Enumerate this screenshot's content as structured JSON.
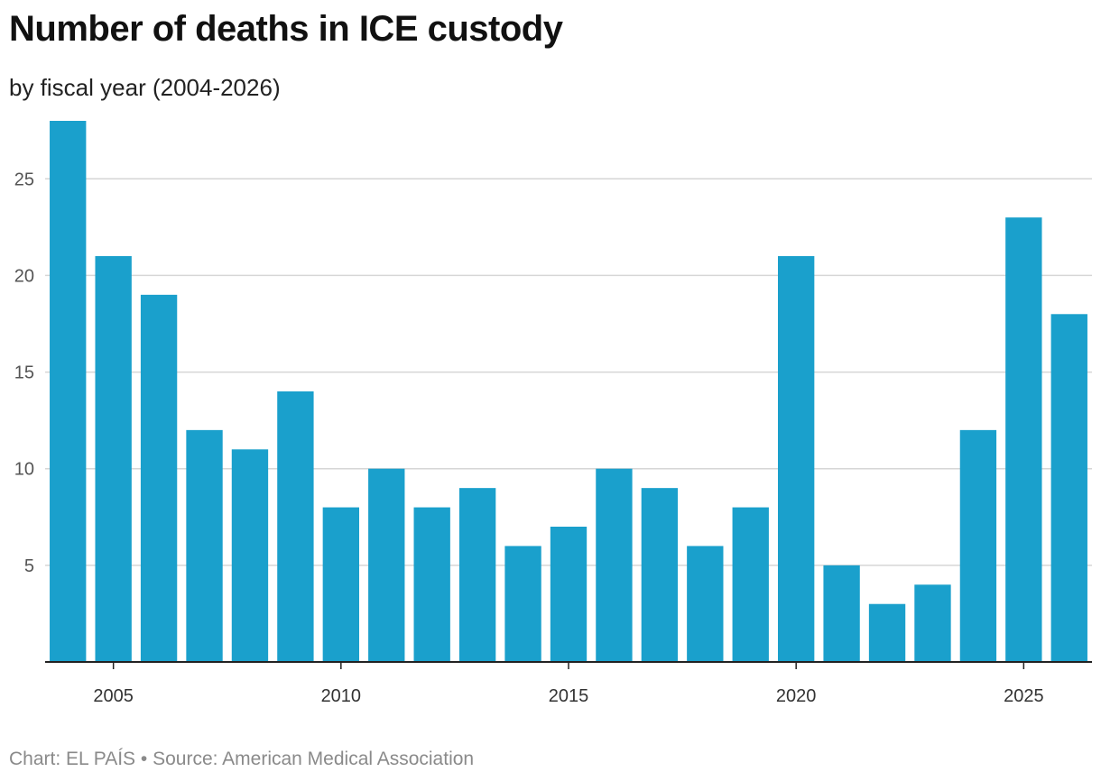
{
  "title": "Number of deaths in ICE custody",
  "subtitle": "by fiscal year (2004-2026)",
  "footer": {
    "chart_credit": "Chart: EL PAÍS",
    "separator": " • ",
    "source": "Source: American Medical Association"
  },
  "colors": {
    "bar": "#1aa0cc",
    "grid": "#d6d6d6",
    "axis": "#222222"
  },
  "chart_data": {
    "type": "bar",
    "title": "Number of deaths in ICE custody",
    "subtitle": "by fiscal year (2004-2026)",
    "xlabel": "",
    "ylabel": "",
    "categories": [
      2004,
      2005,
      2006,
      2007,
      2008,
      2009,
      2010,
      2011,
      2012,
      2013,
      2014,
      2015,
      2016,
      2017,
      2018,
      2019,
      2020,
      2021,
      2022,
      2023,
      2024,
      2025,
      2026
    ],
    "values": [
      28,
      21,
      19,
      12,
      11,
      14,
      8,
      10,
      8,
      9,
      6,
      7,
      10,
      9,
      6,
      8,
      21,
      5,
      3,
      4,
      12,
      23,
      18
    ],
    "ylim": [
      0,
      28
    ],
    "yticks": [
      5,
      10,
      15,
      20,
      25
    ],
    "xticks": [
      2005,
      2010,
      2015,
      2020,
      2025
    ],
    "grid": true,
    "legend": "none"
  }
}
